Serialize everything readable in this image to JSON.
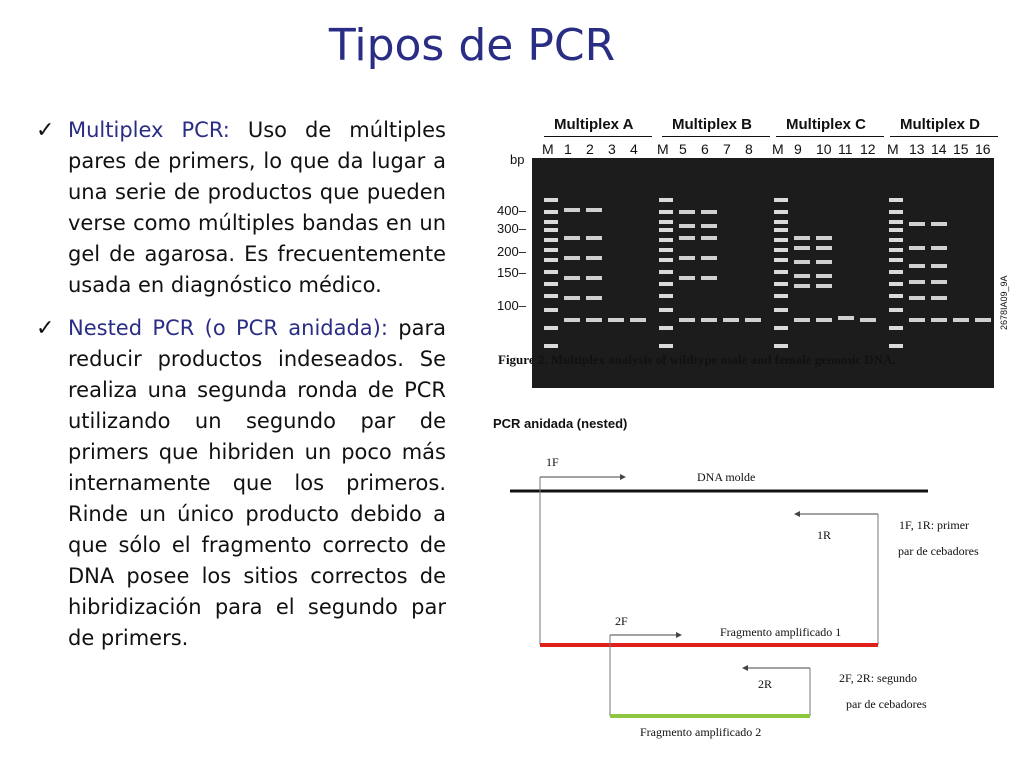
{
  "title": "Tipos de PCR",
  "bullets": [
    {
      "term": "Multiplex PCR:",
      "text": " Uso de múltiples pares de primers, lo que da lugar a una serie de productos que pueden verse como múltiples bandas en un gel de agarosa. Es frecuentemente usada en diagnóstico médico."
    },
    {
      "term": "Nested PCR (o PCR anidada):",
      "text": " para reducir productos indeseados. Se realiza una segunda ronda de PCR utilizando un segundo par de primers que hibriden un poco más internamente que los primeros. Rinde un único producto debido a que sólo el fragmento correcto de DNA posee los sitios correctos de hibridización para el segundo par de primers."
    }
  ],
  "gel_figure": {
    "groups": [
      "Multiplex A",
      "Multiplex B",
      "Multiplex C",
      "Multiplex D"
    ],
    "lanes": [
      "M",
      "1",
      "2",
      "3",
      "4",
      "M",
      "5",
      "6",
      "7",
      "8",
      "M",
      "9",
      "10",
      "11",
      "12",
      "M",
      "13",
      "14",
      "15",
      "16"
    ],
    "bp_unit": "bp",
    "bp_markers": [
      "400–",
      "300–",
      "200–",
      "150–",
      "100–"
    ],
    "side_code": "2678IA09_9A",
    "caption": "Figure 2. Multiplex analysis of wildtype male and female genomic DNA."
  },
  "nested_diagram": {
    "title": "PCR anidada (nested)",
    "primer_1f": "1F",
    "template_label": "DNA molde",
    "primer_1r": "1R",
    "note1_line1": "1F, 1R: primer",
    "note1_line2": "par de cebadores",
    "primer_2f": "2F",
    "fragment1_label": "Fragmento amplificado 1",
    "primer_2r": "2R",
    "note2_line1": "2F, 2R: segundo",
    "note2_line2": "par de cebadores",
    "fragment2_label": "Fragmento amplificado 2",
    "colors": {
      "template": "#111111",
      "fragment1": "#e0201b",
      "fragment2": "#8dc63f"
    }
  }
}
